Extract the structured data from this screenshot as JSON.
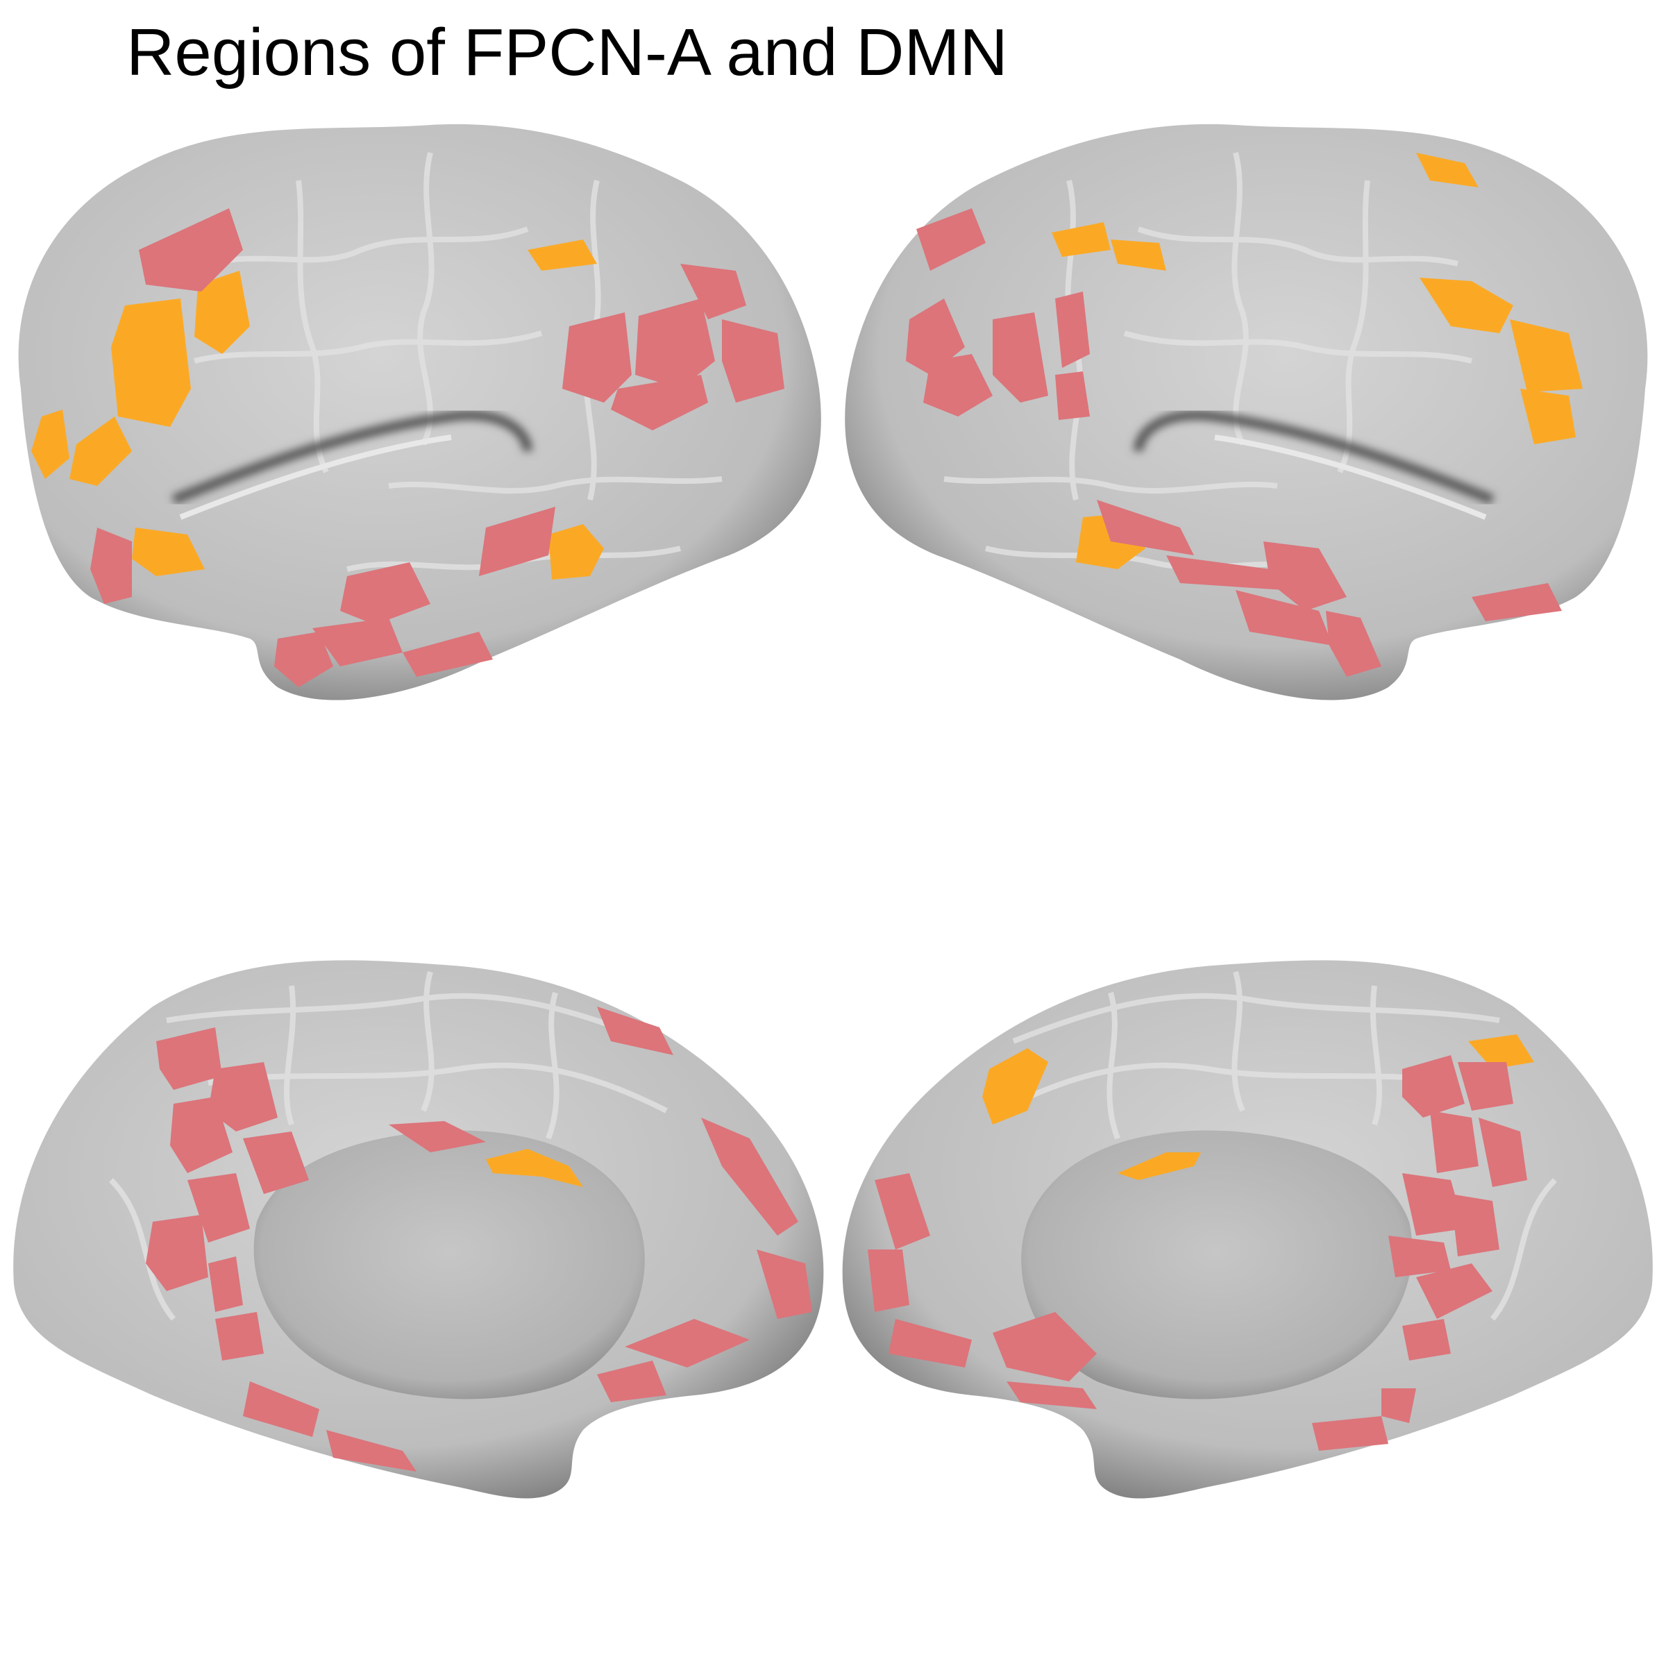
{
  "title": "Regions of FPCN-A and DMN",
  "colors": {
    "fpcn_a": "#FBA925",
    "dmn": "#DC747A",
    "cortex": "#c9c9c9",
    "cortex_shadow": "#6e6e6e",
    "parcel_border": "#e6e6e6",
    "medial_wall": "#b7b7b7"
  },
  "panels": [
    {
      "name": "left-lateral",
      "hemisphere": "left",
      "view": "lateral"
    },
    {
      "name": "right-lateral",
      "hemisphere": "right",
      "view": "lateral"
    },
    {
      "name": "left-medial",
      "hemisphere": "left",
      "view": "medial"
    },
    {
      "name": "right-medial",
      "hemisphere": "right",
      "view": "medial"
    }
  ]
}
